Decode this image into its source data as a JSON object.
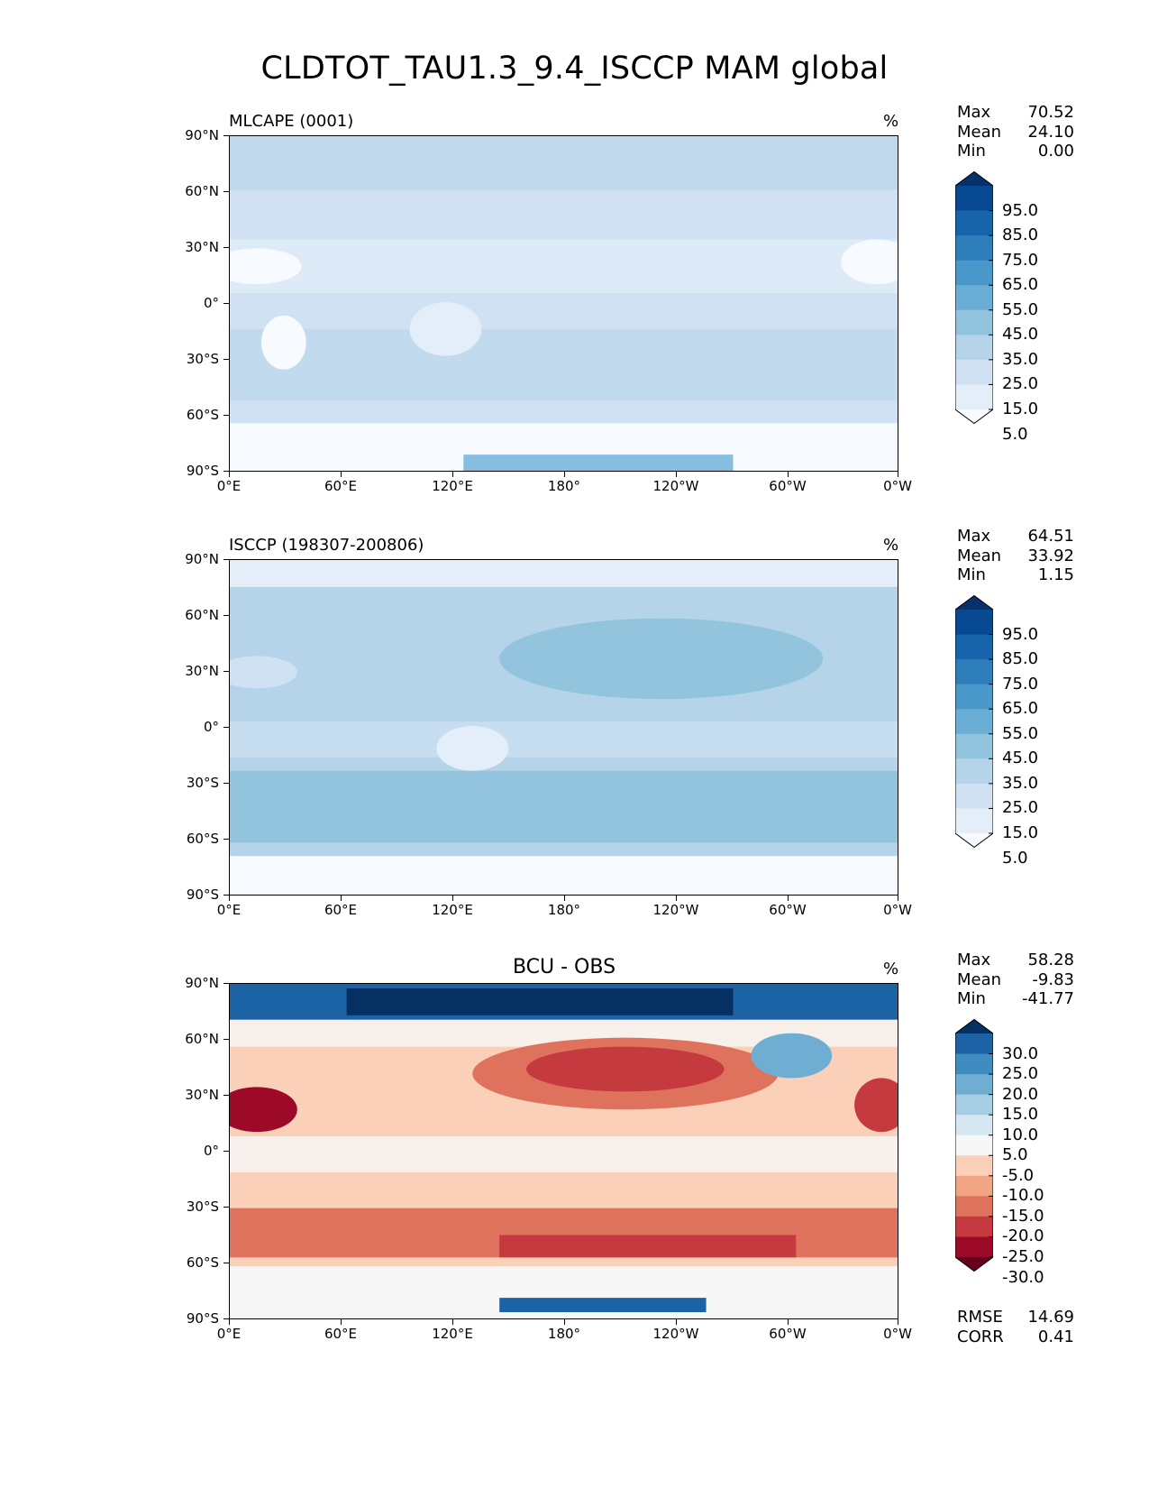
{
  "figure": {
    "title": "CLDTOT_TAU1.3_9.4_ISCCP MAM global"
  },
  "axes": {
    "yticks": [
      "90°N",
      "60°N",
      "30°N",
      "0°",
      "30°S",
      "60°S",
      "90°S"
    ],
    "xticks": [
      "0°E",
      "60°E",
      "120°E",
      "180°",
      "120°W",
      "60°W",
      "0°W"
    ]
  },
  "panels": [
    {
      "id": "test",
      "title": "MLCAPE (0001)",
      "unit": "%",
      "stats": [
        {
          "label": "Max",
          "value": "70.52"
        },
        {
          "label": "Mean",
          "value": "24.10"
        },
        {
          "label": "Min",
          "value": "0.00"
        }
      ],
      "colorbar": {
        "labels": [
          "95.0",
          "85.0",
          "75.0",
          "65.0",
          "55.0",
          "45.0",
          "35.0",
          "25.0",
          "15.0",
          "5.0"
        ],
        "colors": [
          "#f7fbff",
          "#e3eef9",
          "#cfe1f2",
          "#b5d4e9",
          "#93c4de",
          "#6aaed6",
          "#4a98c9",
          "#2e7ebc",
          "#1764ab",
          "#084a91",
          "#08306b"
        ]
      }
    },
    {
      "id": "ref",
      "title": "ISCCP (198307-200806)",
      "unit": "%",
      "stats": [
        {
          "label": "Max",
          "value": "64.51"
        },
        {
          "label": "Mean",
          "value": "33.92"
        },
        {
          "label": "Min",
          "value": "1.15"
        }
      ],
      "colorbar": {
        "labels": [
          "95.0",
          "85.0",
          "75.0",
          "65.0",
          "55.0",
          "45.0",
          "35.0",
          "25.0",
          "15.0",
          "5.0"
        ],
        "colors": [
          "#f7fbff",
          "#e3eef9",
          "#cfe1f2",
          "#b5d4e9",
          "#93c4de",
          "#6aaed6",
          "#4a98c9",
          "#2e7ebc",
          "#1764ab",
          "#084a91",
          "#08306b"
        ]
      }
    },
    {
      "id": "diff",
      "title": "BCU - OBS",
      "unit": "%",
      "stats": [
        {
          "label": "Max",
          "value": "58.28"
        },
        {
          "label": "Mean",
          "value": "-9.83"
        },
        {
          "label": "Min",
          "value": "-41.77"
        }
      ],
      "colorbar": {
        "labels": [
          "30.0",
          "25.0",
          "20.0",
          "15.0",
          "10.0",
          "5.0",
          "-5.0",
          "-10.0",
          "-15.0",
          "-20.0",
          "-25.0",
          "-30.0"
        ],
        "colors": [
          "#67001f",
          "#9c0a27",
          "#c53a3e",
          "#de725c",
          "#f2a585",
          "#fbd0b9",
          "#f7f7f7",
          "#d5e7f1",
          "#a6cee4",
          "#6fadd2",
          "#3f8dc0",
          "#1b63a5",
          "#053061"
        ]
      },
      "footer": [
        {
          "label": "RMSE",
          "value": "14.69"
        },
        {
          "label": "CORR",
          "value": "0.41"
        }
      ]
    }
  ]
}
